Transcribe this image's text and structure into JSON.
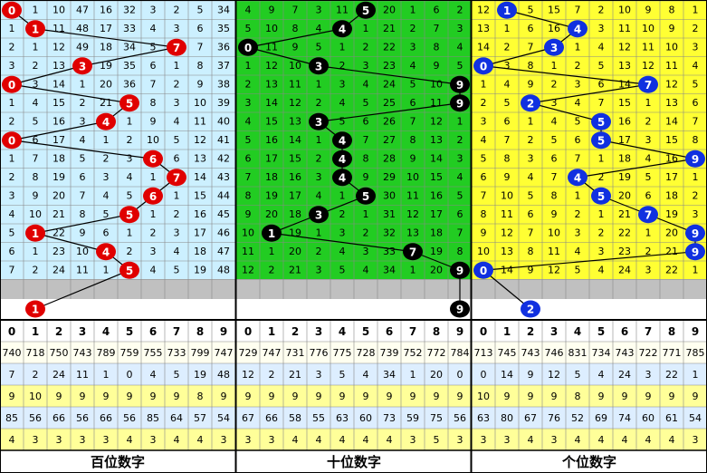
{
  "digits": [
    0,
    1,
    2,
    3,
    4,
    5,
    6,
    7,
    8,
    9
  ],
  "panels": [
    {
      "label": "百位数字",
      "color": "#e00000",
      "background": "#ccf0ff",
      "rows": [
        [
          0,
          1,
          10,
          47,
          16,
          32,
          3,
          2,
          5,
          34
        ],
        [
          1,
          1,
          11,
          48,
          17,
          33,
          4,
          3,
          6,
          35
        ],
        [
          2,
          1,
          12,
          49,
          18,
          34,
          5,
          7,
          7,
          36
        ],
        [
          3,
          2,
          13,
          3,
          19,
          35,
          6,
          1,
          8,
          37
        ],
        [
          0,
          3,
          14,
          1,
          20,
          36,
          7,
          2,
          9,
          38
        ],
        [
          1,
          4,
          15,
          2,
          21,
          5,
          8,
          3,
          10,
          39
        ],
        [
          2,
          5,
          16,
          3,
          4,
          1,
          9,
          4,
          11,
          40
        ],
        [
          0,
          6,
          17,
          4,
          1,
          2,
          10,
          5,
          12,
          41
        ],
        [
          1,
          7,
          18,
          5,
          2,
          3,
          6,
          6,
          13,
          42
        ],
        [
          2,
          8,
          19,
          6,
          3,
          4,
          1,
          7,
          14,
          43
        ],
        [
          3,
          9,
          20,
          7,
          4,
          5,
          6,
          1,
          15,
          44
        ],
        [
          4,
          10,
          21,
          8,
          5,
          5,
          1,
          2,
          16,
          45
        ],
        [
          5,
          1,
          22,
          9,
          6,
          1,
          2,
          3,
          17,
          46
        ],
        [
          6,
          1,
          23,
          10,
          4,
          2,
          3,
          4,
          18,
          47
        ],
        [
          7,
          2,
          24,
          11,
          1,
          5,
          4,
          5,
          19,
          48
        ]
      ],
      "hits": [
        0,
        1,
        7,
        3,
        0,
        5,
        4,
        0,
        6,
        7,
        6,
        5,
        1,
        4,
        5
      ],
      "next": 1,
      "stats": [
        [
          740,
          718,
          750,
          743,
          789,
          759,
          755,
          733,
          799,
          747
        ],
        [
          7,
          2,
          24,
          11,
          1,
          0,
          4,
          5,
          19,
          48
        ],
        [
          9,
          10,
          9,
          9,
          9,
          9,
          9,
          9,
          8,
          9
        ],
        [
          85,
          56,
          66,
          56,
          66,
          56,
          85,
          64,
          57,
          54
        ],
        [
          4,
          3,
          3,
          3,
          3,
          4,
          3,
          4,
          4,
          3
        ]
      ]
    },
    {
      "label": "十位数字",
      "color": "#000000",
      "background": "#22cc22",
      "rows": [
        [
          4,
          9,
          7,
          3,
          11,
          5,
          20,
          1,
          6,
          2
        ],
        [
          5,
          10,
          8,
          4,
          4,
          1,
          21,
          2,
          7,
          3
        ],
        [
          0,
          11,
          9,
          5,
          1,
          2,
          22,
          3,
          8,
          4
        ],
        [
          1,
          12,
          10,
          3,
          2,
          3,
          23,
          4,
          9,
          5
        ],
        [
          2,
          13,
          11,
          1,
          3,
          4,
          24,
          5,
          10,
          9
        ],
        [
          3,
          14,
          12,
          2,
          4,
          5,
          25,
          6,
          11,
          9
        ],
        [
          4,
          15,
          13,
          3,
          5,
          6,
          26,
          7,
          12,
          1
        ],
        [
          5,
          16,
          14,
          1,
          4,
          7,
          27,
          8,
          13,
          2
        ],
        [
          6,
          17,
          15,
          2,
          4,
          8,
          28,
          9,
          14,
          3
        ],
        [
          7,
          18,
          16,
          3,
          4,
          9,
          29,
          10,
          15,
          4
        ],
        [
          8,
          19,
          17,
          4,
          1,
          5,
          30,
          11,
          16,
          5
        ],
        [
          9,
          20,
          18,
          3,
          2,
          1,
          31,
          12,
          17,
          6
        ],
        [
          10,
          1,
          19,
          1,
          3,
          2,
          32,
          13,
          18,
          7
        ],
        [
          11,
          1,
          20,
          2,
          4,
          3,
          33,
          7,
          19,
          8
        ],
        [
          12,
          2,
          21,
          3,
          5,
          4,
          34,
          1,
          20,
          9
        ]
      ],
      "hits": [
        5,
        4,
        0,
        3,
        9,
        9,
        3,
        4,
        4,
        4,
        5,
        3,
        1,
        7,
        9
      ],
      "next": 9,
      "stats": [
        [
          729,
          747,
          731,
          776,
          775,
          728,
          739,
          752,
          772,
          784
        ],
        [
          12,
          2,
          21,
          3,
          5,
          4,
          34,
          1,
          20,
          0
        ],
        [
          9,
          9,
          9,
          9,
          9,
          9,
          9,
          9,
          9,
          9
        ],
        [
          67,
          66,
          58,
          55,
          63,
          60,
          73,
          59,
          75,
          56
        ],
        [
          3,
          3,
          4,
          4,
          4,
          4,
          4,
          3,
          5,
          3
        ]
      ]
    },
    {
      "label": "个位数字",
      "color": "#1030e0",
      "background": "#ffff33",
      "rows": [
        [
          12,
          1,
          5,
          15,
          7,
          2,
          10,
          9,
          8,
          1
        ],
        [
          13,
          1,
          6,
          16,
          4,
          3,
          11,
          10,
          9,
          2
        ],
        [
          14,
          2,
          7,
          3,
          1,
          4,
          12,
          11,
          10,
          3
        ],
        [
          0,
          3,
          8,
          1,
          2,
          5,
          13,
          12,
          11,
          4
        ],
        [
          1,
          4,
          9,
          2,
          3,
          6,
          14,
          7,
          12,
          5
        ],
        [
          2,
          5,
          2,
          3,
          4,
          7,
          15,
          1,
          13,
          6
        ],
        [
          3,
          6,
          1,
          4,
          5,
          5,
          16,
          2,
          14,
          7
        ],
        [
          4,
          7,
          2,
          5,
          6,
          5,
          17,
          3,
          15,
          8
        ],
        [
          5,
          8,
          3,
          6,
          7,
          1,
          18,
          4,
          16,
          9
        ],
        [
          6,
          9,
          4,
          7,
          4,
          2,
          19,
          5,
          17,
          1
        ],
        [
          7,
          10,
          5,
          8,
          1,
          5,
          20,
          6,
          18,
          2
        ],
        [
          8,
          11,
          6,
          9,
          2,
          1,
          21,
          7,
          19,
          3
        ],
        [
          9,
          12,
          7,
          10,
          3,
          2,
          22,
          1,
          20,
          9
        ],
        [
          10,
          13,
          8,
          11,
          4,
          3,
          23,
          2,
          21,
          9
        ],
        [
          0,
          14,
          9,
          12,
          5,
          4,
          24,
          3,
          22,
          1
        ]
      ],
      "hits": [
        1,
        4,
        3,
        0,
        7,
        2,
        5,
        5,
        9,
        4,
        5,
        7,
        9,
        9,
        0
      ],
      "next": 2,
      "stats": [
        [
          713,
          745,
          743,
          746,
          831,
          734,
          743,
          722,
          771,
          785
        ],
        [
          0,
          14,
          9,
          12,
          5,
          4,
          24,
          3,
          22,
          1
        ],
        [
          10,
          9,
          9,
          9,
          8,
          9,
          9,
          9,
          9,
          9
        ],
        [
          63,
          80,
          67,
          76,
          52,
          69,
          74,
          60,
          61,
          54
        ],
        [
          3,
          3,
          4,
          3,
          4,
          4,
          4,
          4,
          4,
          3
        ]
      ]
    }
  ]
}
